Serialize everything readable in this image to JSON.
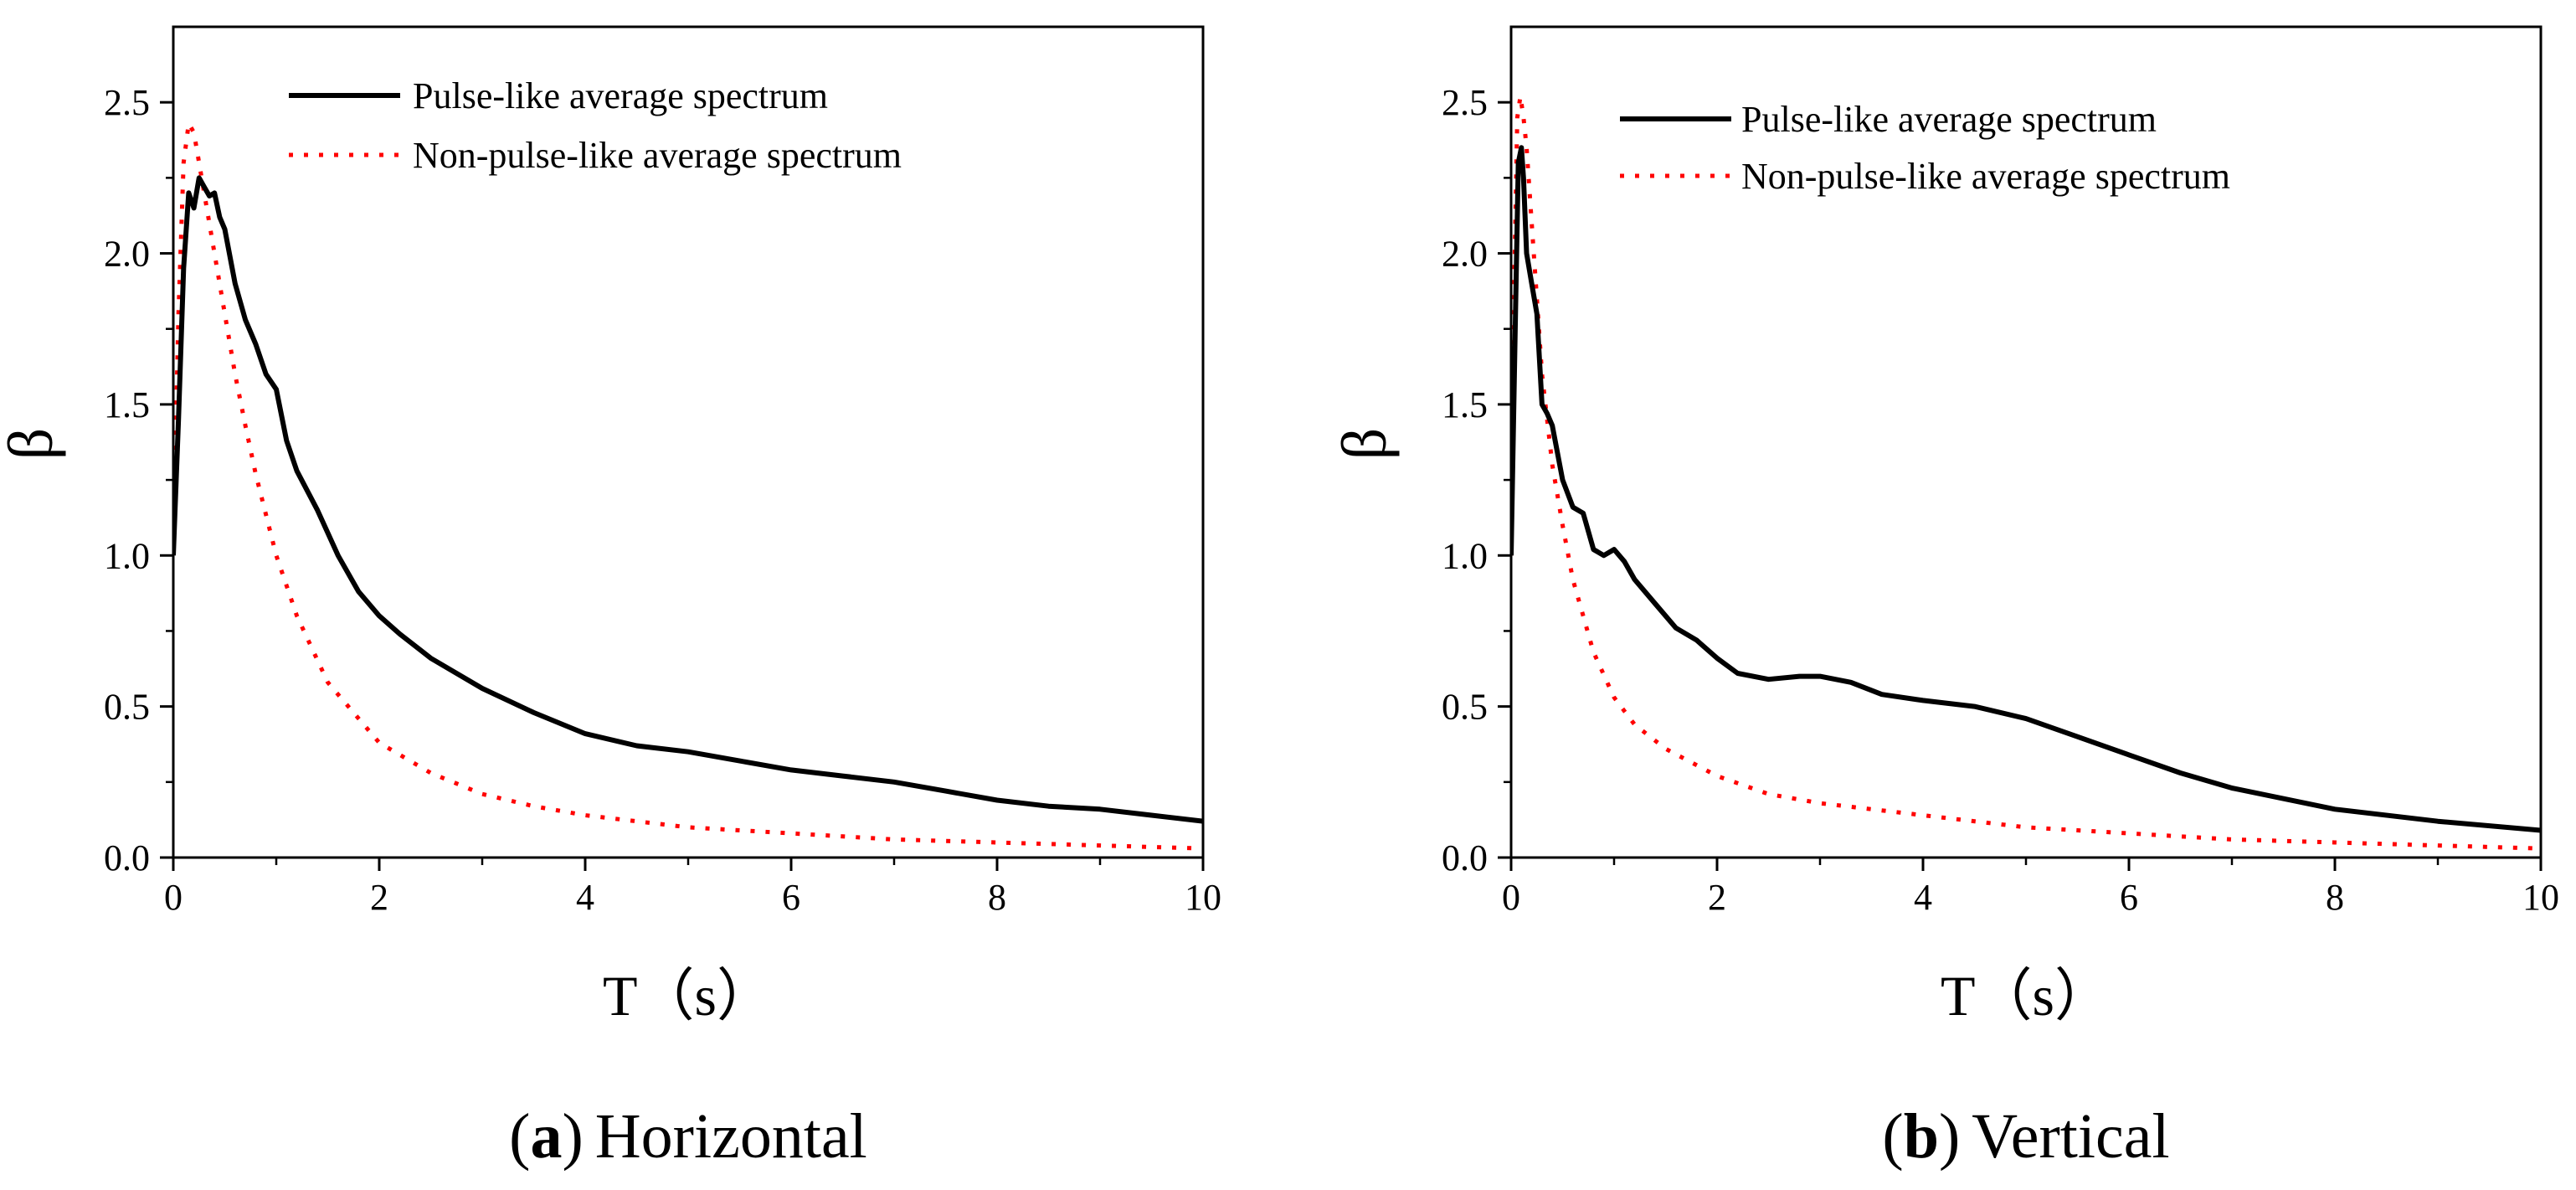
{
  "chart_data": [
    {
      "type": "line",
      "xlabel": "T（s）",
      "ylabel": "β",
      "xlim": [
        0,
        10
      ],
      "ylim": [
        0,
        2.75
      ],
      "xticks": [
        0,
        2,
        4,
        6,
        8,
        10
      ],
      "xtick_labels": [
        "0",
        "2",
        "4",
        "6",
        "8",
        "10"
      ],
      "yticks": [
        0,
        0.5,
        1.0,
        1.5,
        2.0,
        2.5
      ],
      "ytick_labels": [
        "0.0",
        "0.5",
        "1.0",
        "1.5",
        "2.0",
        "2.5"
      ],
      "legend_position": "top-center",
      "caption": {
        "letter": "a",
        "open": "(",
        "close": ")",
        "text": "Horizontal"
      },
      "series": [
        {
          "name": "Pulse-like average spectrum",
          "color": "#000000",
          "style": "solid",
          "x": [
            0,
            0.05,
            0.1,
            0.15,
            0.2,
            0.25,
            0.3,
            0.35,
            0.4,
            0.45,
            0.5,
            0.6,
            0.7,
            0.8,
            0.9,
            1.0,
            1.1,
            1.2,
            1.4,
            1.6,
            1.8,
            2.0,
            2.2,
            2.5,
            3.0,
            3.5,
            4.0,
            4.5,
            5.0,
            5.5,
            6.0,
            6.5,
            7.0,
            7.5,
            8.0,
            8.5,
            9.0,
            9.5,
            10.0
          ],
          "y": [
            1.0,
            1.45,
            1.95,
            2.2,
            2.15,
            2.25,
            2.22,
            2.19,
            2.2,
            2.12,
            2.08,
            1.9,
            1.78,
            1.7,
            1.6,
            1.55,
            1.38,
            1.28,
            1.15,
            1.0,
            0.88,
            0.8,
            0.74,
            0.66,
            0.56,
            0.48,
            0.41,
            0.37,
            0.35,
            0.32,
            0.29,
            0.27,
            0.25,
            0.22,
            0.19,
            0.17,
            0.16,
            0.14,
            0.12
          ]
        },
        {
          "name": "Non-pulse-like average spectrum",
          "color": "#ff0000",
          "style": "dotted",
          "x": [
            0,
            0.05,
            0.1,
            0.15,
            0.2,
            0.25,
            0.3,
            0.4,
            0.5,
            0.6,
            0.7,
            0.8,
            1.0,
            1.2,
            1.5,
            2.0,
            2.5,
            3.0,
            3.5,
            4.0,
            5.0,
            6.0,
            7.0,
            8.0,
            9.0,
            10.0
          ],
          "y": [
            1.05,
            1.8,
            2.3,
            2.43,
            2.4,
            2.3,
            2.2,
            2.0,
            1.8,
            1.6,
            1.43,
            1.27,
            1.0,
            0.8,
            0.58,
            0.38,
            0.28,
            0.21,
            0.17,
            0.14,
            0.1,
            0.08,
            0.06,
            0.05,
            0.04,
            0.03
          ]
        }
      ]
    },
    {
      "type": "line",
      "xlabel": "T（s）",
      "ylabel": "β",
      "xlim": [
        0,
        10
      ],
      "ylim": [
        0,
        2.75
      ],
      "xticks": [
        0,
        2,
        4,
        6,
        8,
        10
      ],
      "xtick_labels": [
        "0",
        "2",
        "4",
        "6",
        "8",
        "10"
      ],
      "yticks": [
        0,
        0.5,
        1.0,
        1.5,
        2.0,
        2.5
      ],
      "ytick_labels": [
        "0.0",
        "0.5",
        "1.0",
        "1.5",
        "2.0",
        "2.5"
      ],
      "legend_position": "top-center",
      "caption": {
        "letter": "b",
        "open": "(",
        "close": ")",
        "text": "Vertical"
      },
      "series": [
        {
          "name": "Pulse-like average spectrum",
          "color": "#000000",
          "style": "solid",
          "x": [
            0,
            0.04,
            0.07,
            0.1,
            0.12,
            0.15,
            0.2,
            0.25,
            0.3,
            0.35,
            0.4,
            0.5,
            0.6,
            0.7,
            0.8,
            0.9,
            1.0,
            1.1,
            1.2,
            1.4,
            1.6,
            1.8,
            2.0,
            2.2,
            2.5,
            2.8,
            3.0,
            3.3,
            3.6,
            4.0,
            4.5,
            5.0,
            5.5,
            6.0,
            6.5,
            7.0,
            8.0,
            9.0,
            10.0
          ],
          "y": [
            1.0,
            1.75,
            2.3,
            2.35,
            2.25,
            2.0,
            1.9,
            1.8,
            1.5,
            1.47,
            1.43,
            1.25,
            1.16,
            1.14,
            1.02,
            1.0,
            1.02,
            0.98,
            0.92,
            0.84,
            0.76,
            0.72,
            0.66,
            0.61,
            0.59,
            0.6,
            0.6,
            0.58,
            0.54,
            0.52,
            0.5,
            0.46,
            0.4,
            0.34,
            0.28,
            0.23,
            0.16,
            0.12,
            0.09
          ]
        },
        {
          "name": "Non-pulse-like average spectrum",
          "color": "#ff0000",
          "style": "dotted",
          "x": [
            0,
            0.03,
            0.06,
            0.09,
            0.12,
            0.15,
            0.2,
            0.25,
            0.3,
            0.4,
            0.5,
            0.6,
            0.8,
            1.0,
            1.2,
            1.5,
            2.0,
            2.5,
            3.0,
            4.0,
            5.0,
            6.0,
            7.0,
            8.0,
            9.0,
            10.0
          ],
          "y": [
            1.0,
            1.9,
            2.45,
            2.52,
            2.45,
            2.35,
            2.1,
            1.85,
            1.6,
            1.3,
            1.1,
            0.92,
            0.68,
            0.53,
            0.44,
            0.36,
            0.27,
            0.21,
            0.18,
            0.14,
            0.1,
            0.08,
            0.06,
            0.05,
            0.04,
            0.03
          ]
        }
      ]
    }
  ]
}
